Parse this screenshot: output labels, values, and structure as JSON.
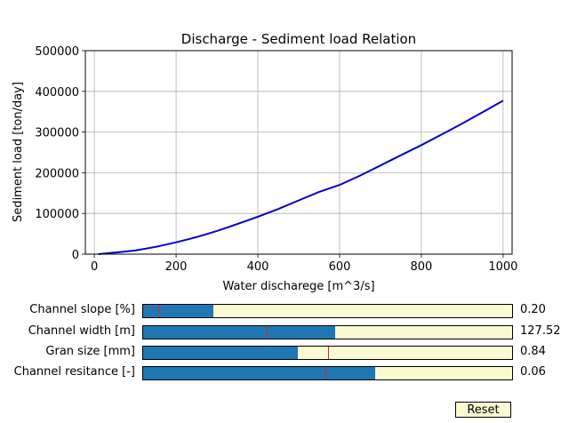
{
  "chart_data": {
    "type": "line",
    "title": "Discharge - Sediment load Relation",
    "xlabel": "Water discharege [m^3/s]",
    "ylabel": "Sediment load [ton/day]",
    "xlim": [
      -22,
      1022
    ],
    "ylim": [
      0,
      500000
    ],
    "xticks": [
      0,
      200,
      400,
      600,
      800,
      1000
    ],
    "yticks": [
      0,
      100000,
      200000,
      300000,
      400000,
      500000
    ],
    "grid": true,
    "line_color": "#0000cc",
    "x": [
      10,
      50,
      100,
      150,
      200,
      250,
      300,
      350,
      400,
      450,
      500,
      550,
      600,
      650,
      700,
      750,
      800,
      850,
      900,
      950,
      1000
    ],
    "values": [
      0,
      4000,
      9000,
      18000,
      29000,
      42000,
      57000,
      74000,
      92000,
      111000,
      132000,
      153000,
      170000,
      193000,
      218000,
      243000,
      268000,
      294000,
      321000,
      349000,
      377000
    ]
  },
  "sliders": [
    {
      "label": "Channel slope [%]",
      "value_text": "0.20",
      "fill": 0.19,
      "init": 0.04
    },
    {
      "label": "Channel width [m]",
      "value_text": "127.52",
      "fill": 0.52,
      "init": 0.335
    },
    {
      "label": "Gran size [mm]",
      "value_text": "0.84",
      "fill": 0.42,
      "init": 0.5
    },
    {
      "label": "Channel resitance [-]",
      "value_text": "0.06",
      "fill": 0.63,
      "init": 0.495
    }
  ],
  "reset_label": "Reset",
  "colors": {
    "slider_fill": "#1f77b4",
    "slider_bg": "#fafad2",
    "init_marker": "#d62728",
    "grid": "#b0b0b0"
  }
}
